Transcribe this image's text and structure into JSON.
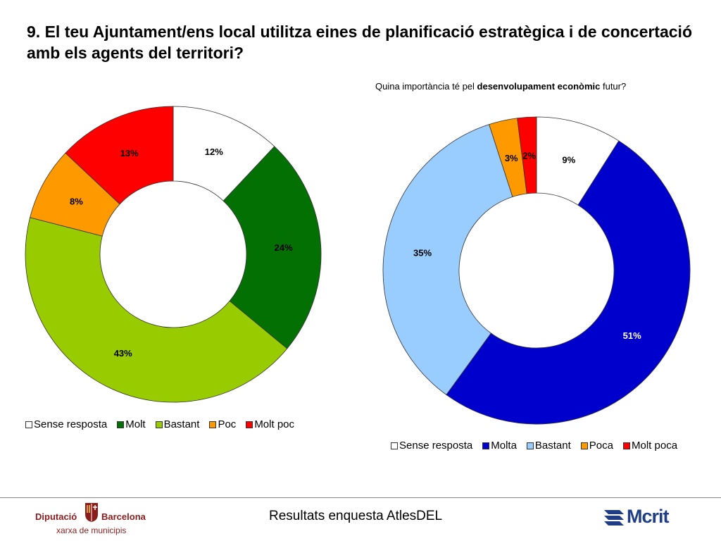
{
  "slide": {
    "title": "9. El teu Ajuntament/ens local utilitza eines de planificació estratègica i de concertació amb els agents del territori?",
    "subtitle_pre": "Quina importància té pel ",
    "subtitle_bold": "desenvolupament econòmic",
    "subtitle_post": " futur?",
    "footer_text": "Resultats enquesta AtlesDEL",
    "logo_left": {
      "name_left": "Diputació",
      "name_right": "Barcelona",
      "subtitle": "xarxa de municipis"
    },
    "logo_right": {
      "text": "Mcrit"
    }
  },
  "chart_data": [
    {
      "type": "pie",
      "title": "",
      "categories": [
        "Sense resposta",
        "Molt",
        "Bastant",
        "Poc",
        "Molt poc"
      ],
      "values": [
        12,
        24,
        43,
        8,
        13
      ],
      "labels": [
        "12%",
        "24%",
        "43%",
        "8%",
        "13%"
      ],
      "colors": [
        "#ffffff",
        "#037003",
        "#99cc00",
        "#ff9900",
        "#ff0000"
      ],
      "label_colors": [
        "#000000",
        "#000000",
        "#000000",
        "#000000",
        "#000000"
      ],
      "legend_position": "bottom"
    },
    {
      "type": "pie",
      "title": "Quina importància té pel desenvolupament econòmic futur?",
      "categories": [
        "Sense resposta",
        "Molta",
        "Bastant",
        "Poca",
        "Molt poca"
      ],
      "values": [
        9,
        51,
        35,
        3,
        2
      ],
      "labels": [
        "9%",
        "51%",
        "35%",
        "3%",
        "2%"
      ],
      "colors": [
        "#ffffff",
        "#0000cc",
        "#99ccff",
        "#ff9900",
        "#ff0000"
      ],
      "label_colors": [
        "#000000",
        "#ffffff",
        "#000000",
        "#000000",
        "#000000"
      ],
      "legend_position": "bottom"
    }
  ]
}
